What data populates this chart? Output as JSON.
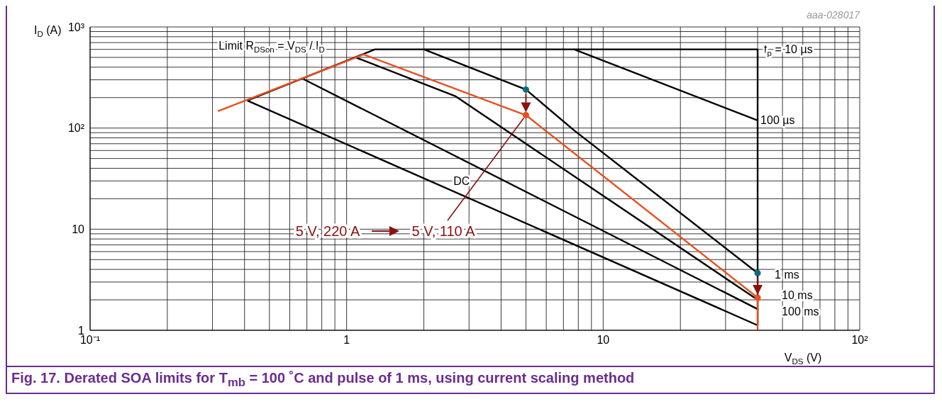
{
  "chart_data": {
    "type": "line",
    "title": "Fig. 17.  Derated SOA limits for T$_{mb}$ = 100 ˚C and pulse of 1 ms, using current scaling method",
    "xlabel": "V$_{DS}$ (V)",
    "ylabel": "I$_{D}$ (A)",
    "log": "xy",
    "grid": true,
    "marker": "none",
    "xlim": [
      0.1,
      100
    ],
    "ylim": [
      1,
      1000
    ],
    "xticks": [
      {
        "value": 0.1,
        "label": "10⁻¹"
      },
      {
        "value": 0.2,
        "label": null
      },
      {
        "value": 0.3,
        "label": null
      },
      {
        "value": 0.4,
        "label": null
      },
      {
        "value": 0.5,
        "label": null
      },
      {
        "value": 0.6,
        "label": null
      },
      {
        "value": 0.7,
        "label": null
      },
      {
        "value": 0.8,
        "label": null
      },
      {
        "value": 0.9,
        "label": null
      },
      1,
      {
        "value": 2,
        "label": null
      },
      {
        "value": 3,
        "label": null
      },
      {
        "value": 4,
        "label": null
      },
      {
        "value": 5,
        "label": null
      },
      {
        "value": 6,
        "label": null
      },
      {
        "value": 7,
        "label": null
      },
      {
        "value": 8,
        "label": null
      },
      {
        "value": 9,
        "label": null
      },
      10,
      {
        "value": 20,
        "label": null
      },
      {
        "value": 30,
        "label": null
      },
      {
        "value": 40,
        "label": null
      },
      {
        "value": 50,
        "label": null
      },
      {
        "value": 60,
        "label": null
      },
      {
        "value": 70,
        "label": null
      },
      {
        "value": 80,
        "label": null
      },
      {
        "value": 90,
        "label": null
      },
      {
        "value": 100,
        "label": "10²"
      }
    ],
    "yticks": [
      1,
      {
        "value": 2,
        "label": null
      },
      {
        "value": 3,
        "label": null
      },
      {
        "value": 4,
        "label": null
      },
      {
        "value": 5,
        "label": null
      },
      {
        "value": 6,
        "label": null
      },
      {
        "value": 7,
        "label": null
      },
      {
        "value": 8,
        "label": null
      },
      {
        "value": 9,
        "label": null
      },
      10,
      {
        "value": 20,
        "label": null
      },
      {
        "value": 30,
        "label": null
      },
      {
        "value": 40,
        "label": null
      },
      {
        "value": 50,
        "label": null
      },
      {
        "value": 60,
        "label": null
      },
      {
        "value": 70,
        "label": null
      },
      {
        "value": 80,
        "label": null
      },
      {
        "value": 90,
        "label": null
      },
      {
        "value": 100,
        "label": "10²"
      },
      {
        "value": 200,
        "label": null
      },
      {
        "value": 300,
        "label": null
      },
      {
        "value": 400,
        "label": null
      },
      {
        "value": 500,
        "label": null
      },
      {
        "value": 600,
        "label": null
      },
      {
        "value": 700,
        "label": null
      },
      {
        "value": 800,
        "label": null
      },
      {
        "value": 900,
        "label": null
      },
      {
        "value": 1000,
        "label": "10³"
      }
    ],
    "series": [
      {
        "name": "t$_{p}$ = 10 µs",
        "color": "#000000",
        "x": [
          0.41,
          1.29,
          40,
          40
        ],
        "values": [
          187,
          600,
          600,
          1.12
        ]
      },
      {
        "name": "100 µs",
        "color": "#000000",
        "x": [
          7.7,
          40
        ],
        "values": [
          600,
          119
        ]
      },
      {
        "name": "1 ms",
        "color": "#000000",
        "x": [
          2,
          5,
          7.7,
          40
        ],
        "values": [
          600,
          240,
          95,
          3.68
        ]
      },
      {
        "name": "10 ms",
        "color": "#000000",
        "x": [
          1.09,
          2.65,
          40
        ],
        "values": [
          497,
          207,
          2.0
        ]
      },
      {
        "name": "100 ms",
        "color": "#000000",
        "x": [
          0.68,
          40
        ],
        "values": [
          304,
          1.62
        ]
      },
      {
        "name": "DC",
        "color": "#000000",
        "x": [
          0.41,
          40
        ],
        "values": [
          187,
          1.12
        ]
      },
      {
        "color": "#e8501f",
        "x": [
          0.315,
          1.166,
          5,
          40,
          40
        ],
        "values": [
          147,
          535,
          134,
          2.1,
          1
        ]
      },
      {
        "type": "scatter",
        "marker": "circle",
        "color": "#0b6e78",
        "x": [
          5,
          40
        ],
        "values": [
          240,
          3.68
        ]
      },
      {
        "type": "scatter",
        "marker": "circle",
        "color": "#e8501f",
        "x": [
          5,
          40
        ],
        "values": [
          134,
          2.1
        ]
      }
    ],
    "annotations": [
      "aaa-028017",
      "Limit R$_{DSon}$ = V$_{DS}$ / I$_{D}$",
      "5 V, 220 A",
      {
        "text": "5 V, 110 A",
        "x": 5,
        "y": 134
      }
    ]
  }
}
